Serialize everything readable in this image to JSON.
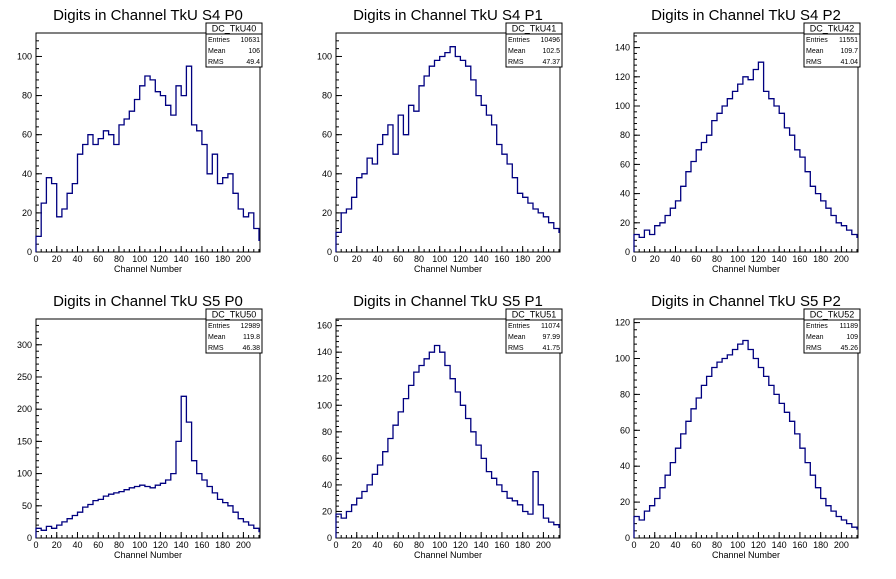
{
  "colors": {
    "line": "#000080",
    "axis": "#000000",
    "background": "#ffffff"
  },
  "stats_labels": {
    "entries": "Entries",
    "mean": "Mean",
    "rms": "RMS"
  },
  "chart_data": [
    {
      "type": "line",
      "title": "Digits in Channel TkU S4 P0",
      "xlabel": "Channel Number",
      "ylabel": "",
      "xlim": [
        0,
        216
      ],
      "ylim": [
        0,
        112
      ],
      "xticks": [
        0,
        20,
        40,
        60,
        80,
        100,
        120,
        140,
        160,
        180,
        200
      ],
      "yticks": [
        0,
        20,
        40,
        60,
        80,
        100
      ],
      "stats": {
        "name": "DC_TkU40",
        "entries": "10631",
        "mean": "106",
        "rms": "49.4"
      },
      "series": [
        {
          "x": [
            0,
            5,
            10,
            15,
            20,
            25,
            30,
            35,
            40,
            45,
            50,
            55,
            60,
            65,
            70,
            75,
            80,
            85,
            90,
            95,
            100,
            105,
            110,
            115,
            120,
            125,
            130,
            135,
            140,
            145,
            150,
            155,
            160,
            165,
            170,
            175,
            180,
            185,
            190,
            195,
            200,
            205,
            210,
            215
          ],
          "values": [
            8,
            25,
            38,
            35,
            18,
            22,
            30,
            35,
            50,
            55,
            60,
            55,
            58,
            62,
            60,
            55,
            65,
            68,
            72,
            78,
            85,
            90,
            88,
            82,
            80,
            75,
            70,
            85,
            80,
            95,
            65,
            62,
            55,
            40,
            50,
            35,
            38,
            40,
            30,
            22,
            18,
            20,
            12,
            6
          ]
        }
      ]
    },
    {
      "type": "line",
      "title": "Digits in Channel TkU S4 P1",
      "xlabel": "Channel Number",
      "ylabel": "",
      "xlim": [
        0,
        216
      ],
      "ylim": [
        0,
        112
      ],
      "xticks": [
        0,
        20,
        40,
        60,
        80,
        100,
        120,
        140,
        160,
        180,
        200
      ],
      "yticks": [
        0,
        20,
        40,
        60,
        80,
        100
      ],
      "stats": {
        "name": "DC_TkU41",
        "entries": "10496",
        "mean": "102.5",
        "rms": "47.37"
      },
      "series": [
        {
          "x": [
            0,
            5,
            10,
            15,
            20,
            25,
            30,
            35,
            40,
            45,
            50,
            55,
            60,
            65,
            70,
            75,
            80,
            85,
            90,
            95,
            100,
            105,
            110,
            115,
            120,
            125,
            130,
            135,
            140,
            145,
            150,
            155,
            160,
            165,
            170,
            175,
            180,
            185,
            190,
            195,
            200,
            205,
            210,
            215
          ],
          "values": [
            10,
            20,
            22,
            28,
            38,
            40,
            48,
            45,
            55,
            60,
            65,
            50,
            70,
            60,
            75,
            72,
            85,
            90,
            95,
            98,
            100,
            102,
            105,
            100,
            98,
            95,
            88,
            80,
            75,
            70,
            65,
            55,
            50,
            45,
            38,
            30,
            28,
            25,
            22,
            20,
            18,
            15,
            12,
            10
          ]
        }
      ]
    },
    {
      "type": "line",
      "title": "Digits in Channel TkU S4 P2",
      "xlabel": "Channel Number",
      "ylabel": "",
      "xlim": [
        0,
        216
      ],
      "ylim": [
        0,
        150
      ],
      "xticks": [
        0,
        20,
        40,
        60,
        80,
        100,
        120,
        140,
        160,
        180,
        200
      ],
      "yticks": [
        0,
        20,
        40,
        60,
        80,
        100,
        120,
        140
      ],
      "stats": {
        "name": "DC_TkU42",
        "entries": "11551",
        "mean": "109.7",
        "rms": "41.04"
      },
      "series": [
        {
          "x": [
            0,
            5,
            10,
            15,
            20,
            25,
            30,
            35,
            40,
            45,
            50,
            55,
            60,
            65,
            70,
            75,
            80,
            85,
            90,
            95,
            100,
            105,
            110,
            115,
            120,
            125,
            130,
            135,
            140,
            145,
            150,
            155,
            160,
            165,
            170,
            175,
            180,
            185,
            190,
            195,
            200,
            205,
            210,
            215
          ],
          "values": [
            12,
            10,
            15,
            12,
            18,
            20,
            25,
            30,
            35,
            45,
            55,
            62,
            70,
            75,
            80,
            90,
            95,
            100,
            105,
            110,
            115,
            120,
            118,
            125,
            130,
            110,
            105,
            100,
            95,
            85,
            80,
            70,
            65,
            55,
            45,
            40,
            35,
            30,
            25,
            20,
            18,
            15,
            12,
            10
          ]
        }
      ]
    },
    {
      "type": "line",
      "title": "Digits in Channel TkU S5 P0",
      "xlabel": "Channel Number",
      "ylabel": "",
      "xlim": [
        0,
        216
      ],
      "ylim": [
        0,
        340
      ],
      "xticks": [
        0,
        20,
        40,
        60,
        80,
        100,
        120,
        140,
        160,
        180,
        200
      ],
      "yticks": [
        0,
        50,
        100,
        150,
        200,
        250,
        300
      ],
      "stats": {
        "name": "DC_TkU50",
        "entries": "12989",
        "mean": "119.8",
        "rms": "46.38"
      },
      "series": [
        {
          "x": [
            0,
            5,
            10,
            15,
            20,
            25,
            30,
            35,
            40,
            45,
            50,
            55,
            60,
            65,
            70,
            75,
            80,
            85,
            90,
            95,
            100,
            105,
            110,
            115,
            120,
            125,
            130,
            135,
            140,
            145,
            150,
            155,
            160,
            165,
            170,
            175,
            180,
            185,
            190,
            195,
            200,
            205,
            210,
            215
          ],
          "values": [
            15,
            12,
            18,
            15,
            20,
            25,
            30,
            35,
            40,
            48,
            52,
            58,
            60,
            65,
            68,
            70,
            72,
            75,
            78,
            80,
            82,
            80,
            78,
            82,
            85,
            90,
            100,
            150,
            220,
            180,
            120,
            100,
            90,
            80,
            70,
            60,
            55,
            50,
            40,
            30,
            25,
            20,
            15,
            10
          ]
        }
      ]
    },
    {
      "type": "line",
      "title": "Digits in Channel TkU S5 P1",
      "xlabel": "Channel Number",
      "ylabel": "",
      "xlim": [
        0,
        216
      ],
      "ylim": [
        0,
        165
      ],
      "xticks": [
        0,
        20,
        40,
        60,
        80,
        100,
        120,
        140,
        160,
        180,
        200
      ],
      "yticks": [
        0,
        20,
        40,
        60,
        80,
        100,
        120,
        140,
        160
      ],
      "stats": {
        "name": "DC_TkU51",
        "entries": "11074",
        "mean": "97.99",
        "rms": "41.75"
      },
      "series": [
        {
          "x": [
            0,
            5,
            10,
            15,
            20,
            25,
            30,
            35,
            40,
            45,
            50,
            55,
            60,
            65,
            70,
            75,
            80,
            85,
            90,
            95,
            100,
            105,
            110,
            115,
            120,
            125,
            130,
            135,
            140,
            145,
            150,
            155,
            160,
            165,
            170,
            175,
            180,
            185,
            190,
            195,
            200,
            205,
            210,
            215
          ],
          "values": [
            18,
            15,
            20,
            25,
            30,
            35,
            40,
            48,
            55,
            65,
            75,
            85,
            95,
            105,
            115,
            125,
            130,
            135,
            140,
            145,
            140,
            130,
            120,
            110,
            100,
            90,
            80,
            70,
            60,
            50,
            45,
            40,
            35,
            30,
            28,
            25,
            20,
            18,
            50,
            25,
            15,
            12,
            10,
            8
          ]
        }
      ]
    },
    {
      "type": "line",
      "title": "Digits in Channel TkU S5 P2",
      "xlabel": "Channel Number",
      "ylabel": "",
      "xlim": [
        0,
        216
      ],
      "ylim": [
        0,
        122
      ],
      "xticks": [
        0,
        20,
        40,
        60,
        80,
        100,
        120,
        140,
        160,
        180,
        200
      ],
      "yticks": [
        0,
        20,
        40,
        60,
        80,
        100,
        120
      ],
      "stats": {
        "name": "DC_TkU52",
        "entries": "11189",
        "mean": "109",
        "rms": "45.26"
      },
      "series": [
        {
          "x": [
            0,
            5,
            10,
            15,
            20,
            25,
            30,
            35,
            40,
            45,
            50,
            55,
            60,
            65,
            70,
            75,
            80,
            85,
            90,
            95,
            100,
            105,
            110,
            115,
            120,
            125,
            130,
            135,
            140,
            145,
            150,
            155,
            160,
            165,
            170,
            175,
            180,
            185,
            190,
            195,
            200,
            205,
            210,
            215
          ],
          "values": [
            12,
            10,
            15,
            18,
            22,
            28,
            35,
            42,
            50,
            58,
            65,
            72,
            78,
            85,
            90,
            95,
            98,
            100,
            102,
            105,
            108,
            110,
            105,
            100,
            95,
            90,
            85,
            80,
            75,
            70,
            65,
            58,
            50,
            42,
            35,
            28,
            22,
            18,
            15,
            12,
            10,
            8,
            6,
            5
          ]
        }
      ]
    }
  ]
}
